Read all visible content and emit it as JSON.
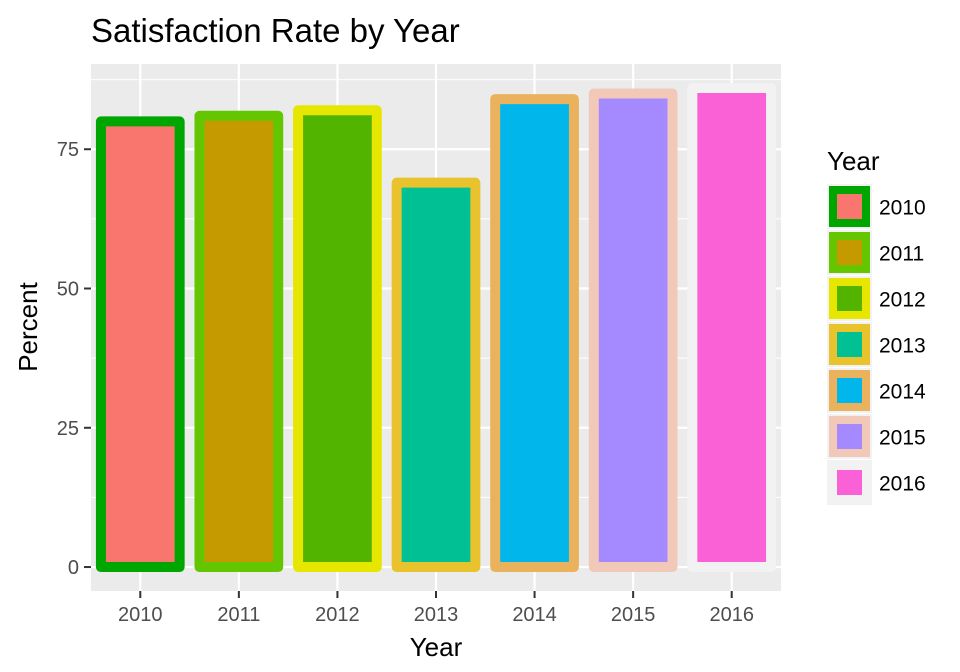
{
  "chart_data": {
    "type": "bar",
    "title": "Satisfaction Rate by Year",
    "xlabel": "Year",
    "ylabel": "Percent",
    "categories": [
      "2010",
      "2011",
      "2012",
      "2013",
      "2014",
      "2015",
      "2016"
    ],
    "values": [
      80,
      81,
      82,
      69,
      84,
      85,
      86
    ],
    "fill_colors": [
      "#F8766D",
      "#C49A00",
      "#53B400",
      "#00C094",
      "#00B6EB",
      "#A58AFF",
      "#FB61D7"
    ],
    "outline_colors": [
      "#00A600",
      "#63C600",
      "#E6E600",
      "#E8C32E",
      "#EBB25E",
      "#F2C9B9",
      "#F2F2F2"
    ],
    "ylim": [
      -4.3,
      90.3
    ],
    "yticks": [
      0,
      25,
      50,
      75
    ],
    "ytick_labels": [
      "0",
      "25",
      "50",
      "75"
    ],
    "panel_background": "#EBEBEB",
    "grid": true,
    "legend": {
      "title": "Year",
      "position": "right",
      "entries": [
        "2010",
        "2011",
        "2012",
        "2013",
        "2014",
        "2015",
        "2016"
      ]
    }
  }
}
